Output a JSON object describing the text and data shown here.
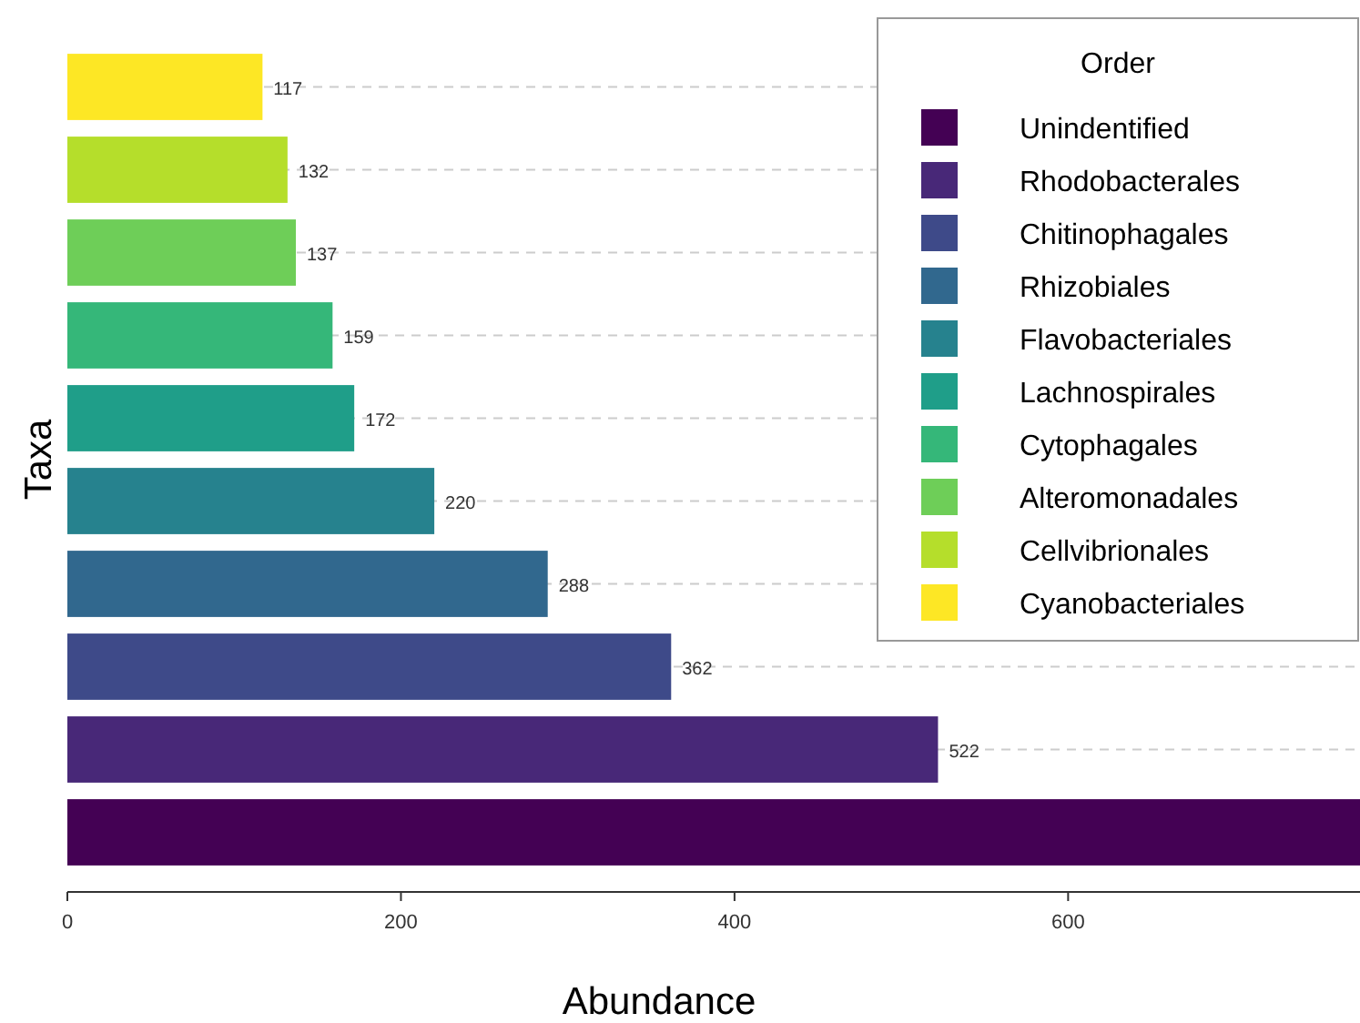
{
  "chart_data": {
    "type": "bar",
    "orientation": "horizontal",
    "stacked": true,
    "xlabel": "Abundance",
    "ylabel": "Taxa",
    "legend_title": "Order",
    "legend": "top right",
    "grid": "y",
    "tick_labels": "x",
    "categories": [
      null,
      null,
      null,
      null,
      null,
      null,
      null,
      null,
      null,
      null
    ],
    "series": [
      {
        "name": "Unindentified",
        "color": "#440154",
        "values": [
          null,
          null,
          null,
          null,
          null,
          null,
          null,
          null,
          null,
          775
        ],
        "value_labels": [
          null,
          null,
          null,
          null,
          null,
          null,
          null,
          null,
          null,
          null
        ]
      },
      {
        "name": "Rhodobacterales",
        "color": "#482878",
        "values": [
          null,
          null,
          null,
          null,
          null,
          null,
          null,
          null,
          522,
          null
        ],
        "value_labels": [
          null,
          null,
          null,
          null,
          null,
          null,
          null,
          null,
          "522",
          null
        ]
      },
      {
        "name": "Chitinophagales",
        "color": "#3e4a89",
        "values": [
          null,
          null,
          null,
          null,
          null,
          null,
          null,
          362,
          null,
          null
        ],
        "value_labels": [
          null,
          null,
          null,
          null,
          null,
          null,
          null,
          "362",
          null,
          null
        ]
      },
      {
        "name": "Rhizobiales",
        "color": "#31688e",
        "values": [
          null,
          null,
          null,
          null,
          null,
          null,
          288,
          null,
          null,
          null
        ],
        "value_labels": [
          null,
          null,
          null,
          null,
          null,
          null,
          "288",
          null,
          null,
          null
        ]
      },
      {
        "name": "Flavobacteriales",
        "color": "#26828e",
        "values": [
          null,
          null,
          null,
          null,
          null,
          220,
          null,
          null,
          null,
          null
        ],
        "value_labels": [
          null,
          null,
          null,
          null,
          null,
          "220",
          null,
          null,
          null,
          null
        ]
      },
      {
        "name": "Lachnospirales",
        "color": "#1f9e89",
        "values": [
          null,
          null,
          null,
          null,
          172,
          null,
          null,
          null,
          null,
          null
        ],
        "value_labels": [
          null,
          null,
          null,
          null,
          "172",
          null,
          null,
          null,
          null,
          null
        ]
      },
      {
        "name": "Cytophagales",
        "color": "#35b779",
        "values": [
          null,
          null,
          null,
          159,
          null,
          null,
          null,
          null,
          null,
          null
        ],
        "value_labels": [
          null,
          null,
          null,
          "159",
          null,
          null,
          null,
          null,
          null,
          null
        ]
      },
      {
        "name": "Alteromonadales",
        "color": "#6ece58",
        "values": [
          null,
          null,
          137,
          null,
          null,
          null,
          null,
          null,
          null,
          null
        ],
        "value_labels": [
          null,
          null,
          "137",
          null,
          null,
          null,
          null,
          null,
          null,
          null
        ]
      },
      {
        "name": "Cellvibrionales",
        "color": "#b5de2b",
        "values": [
          null,
          132,
          null,
          null,
          null,
          null,
          null,
          null,
          null,
          null
        ],
        "value_labels": [
          null,
          "132",
          null,
          null,
          null,
          null,
          null,
          null,
          null,
          null
        ]
      },
      {
        "name": "Cyanobacteriales",
        "color": "#fde725",
        "values": [
          117,
          null,
          null,
          null,
          null,
          null,
          null,
          null,
          null,
          null
        ],
        "value_labels": [
          "117",
          null,
          null,
          null,
          null,
          null,
          null,
          null,
          null,
          null
        ]
      }
    ],
    "xlim": [
      0,
      775
    ],
    "xticks": [
      0,
      200,
      400,
      600
    ]
  }
}
